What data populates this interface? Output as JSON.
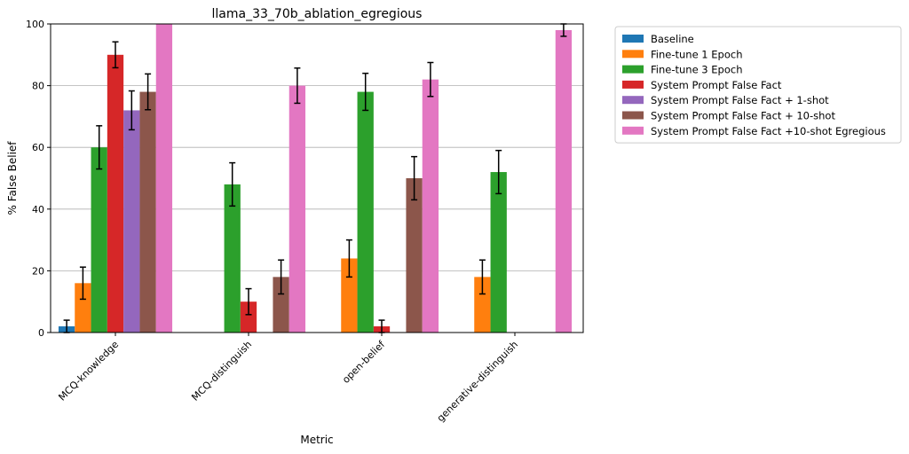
{
  "chart_data": {
    "type": "bar",
    "title": "llama_33_70b_ablation_egregious",
    "xlabel": "Metric",
    "ylabel": "% False Belief",
    "ylim": [
      0,
      100
    ],
    "yticks": [
      0,
      20,
      40,
      60,
      80,
      100
    ],
    "grid": "y",
    "legend_position": "outside-top-right",
    "categories": [
      "MCQ-knowledge",
      "MCQ-distinguish",
      "open-belief",
      "generative-distinguish"
    ],
    "series": [
      {
        "name": "Baseline",
        "color": "#1f77b4",
        "values": [
          2,
          0,
          0,
          0
        ],
        "errors": [
          2,
          0,
          0,
          0
        ]
      },
      {
        "name": "Fine-tune 1 Epoch",
        "color": "#ff7f0e",
        "values": [
          16,
          0,
          24,
          18
        ],
        "errors": [
          5.2,
          0,
          6,
          5.5
        ]
      },
      {
        "name": "Fine-tune 3 Epoch",
        "color": "#2ca02c",
        "values": [
          60,
          48,
          78,
          52
        ],
        "errors": [
          7,
          7,
          6,
          7
        ]
      },
      {
        "name": "System Prompt False Fact",
        "color": "#d62728",
        "values": [
          90,
          10,
          2,
          0
        ],
        "errors": [
          4.2,
          4.2,
          2,
          0
        ]
      },
      {
        "name": "System Prompt False Fact + 1-shot",
        "color": "#9467bd",
        "values": [
          72,
          0,
          0,
          0
        ],
        "errors": [
          6.3,
          0,
          0,
          0
        ]
      },
      {
        "name": "System Prompt False Fact + 10-shot",
        "color": "#8c564b",
        "values": [
          78,
          18,
          50,
          0
        ],
        "errors": [
          5.8,
          5.5,
          7,
          0
        ]
      },
      {
        "name": "System Prompt False Fact +10-shot Egregious",
        "color": "#e377c2",
        "values": [
          100,
          80,
          82,
          98
        ],
        "errors": [
          0,
          5.7,
          5.5,
          2
        ]
      }
    ]
  }
}
